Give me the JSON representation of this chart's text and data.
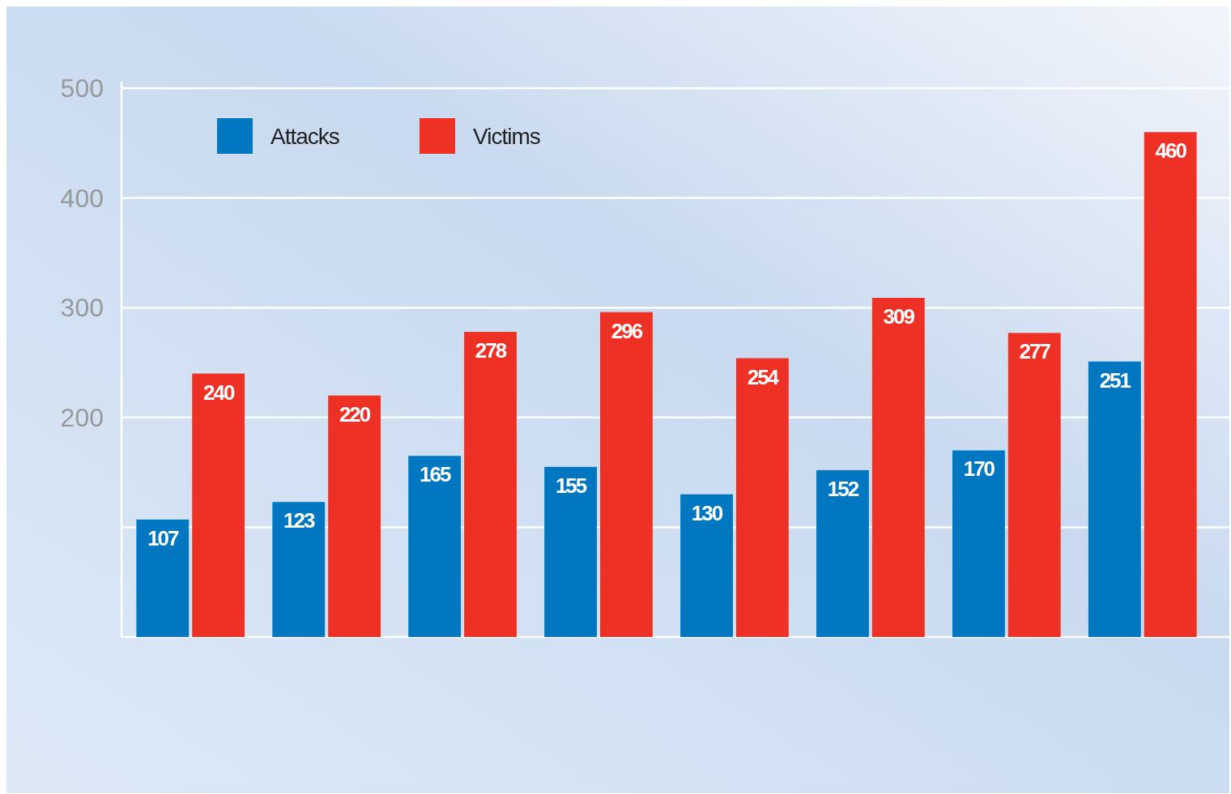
{
  "chart_data": {
    "type": "bar",
    "categories": [
      null,
      null,
      null,
      null,
      null,
      null,
      null,
      null
    ],
    "series": [
      {
        "name": "Attacks",
        "color": "#0077c0",
        "values": [
          107,
          123,
          165,
          155,
          130,
          152,
          170,
          251
        ]
      },
      {
        "name": "Victims",
        "color": "#ee3124",
        "values": [
          240,
          220,
          278,
          296,
          254,
          309,
          277,
          460
        ]
      }
    ],
    "ylim": [
      0,
      500
    ],
    "yticks": [
      {
        "value": 100,
        "label": null
      },
      200,
      300,
      400,
      500
    ],
    "grid": "y",
    "legend": "top left",
    "data_labels": true
  }
}
